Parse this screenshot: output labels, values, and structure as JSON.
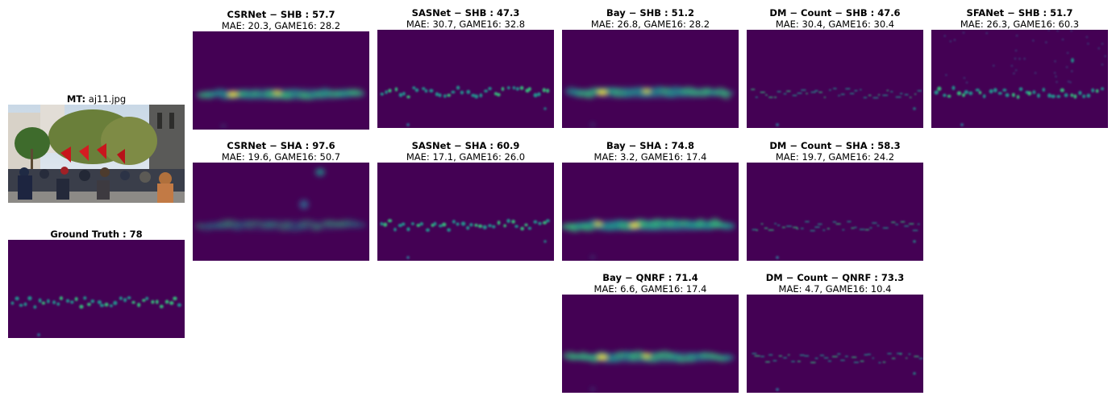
{
  "photo_panel": {
    "label": "MT:",
    "filename": "aj11.jpg"
  },
  "ground_truth": {
    "title": "Ground Truth : 78"
  },
  "panels": [
    {
      "id": "csrnet-shb",
      "title": "CSRNet − SHB : 57.7",
      "metrics": "MAE: 20.3, GAME16: 28.2"
    },
    {
      "id": "sasnet-shb",
      "title": "SASNet − SHB : 47.3",
      "metrics": "MAE: 30.7, GAME16: 32.8"
    },
    {
      "id": "bay-shb",
      "title": "Bay − SHB : 51.2",
      "metrics": "MAE: 26.8, GAME16: 28.2"
    },
    {
      "id": "dmcount-shb",
      "title": "DM − Count − SHB : 47.6",
      "metrics": "MAE: 30.4, GAME16: 30.4"
    },
    {
      "id": "sfanet-shb",
      "title": "SFANet − SHB : 51.7",
      "metrics": "MAE: 26.3, GAME16: 60.3"
    },
    {
      "id": "csrnet-sha",
      "title": "CSRNet − SHA : 97.6",
      "metrics": "MAE: 19.6, GAME16: 50.7"
    },
    {
      "id": "sasnet-sha",
      "title": "SASNet − SHA : 60.9",
      "metrics": "MAE: 17.1, GAME16: 26.0"
    },
    {
      "id": "bay-sha",
      "title": "Bay − SHA : 74.8",
      "metrics": "MAE: 3.2, GAME16: 17.4"
    },
    {
      "id": "dmcount-sha",
      "title": "DM − Count − SHA : 58.3",
      "metrics": "MAE: 19.7, GAME16: 24.2"
    },
    {
      "id": "bay-qnrf",
      "title": "Bay − QNRF : 71.4",
      "metrics": "MAE: 6.6, GAME16: 17.4"
    },
    {
      "id": "dmcount-qnrf",
      "title": "DM − Count − QNRF : 73.3",
      "metrics": "MAE: 4.7, GAME16: 10.4"
    }
  ],
  "colors": {
    "map_background": "#440154",
    "map_low": "#31688e",
    "map_mid": "#21918c",
    "map_high": "#35b779",
    "map_peak": "#fde725"
  }
}
